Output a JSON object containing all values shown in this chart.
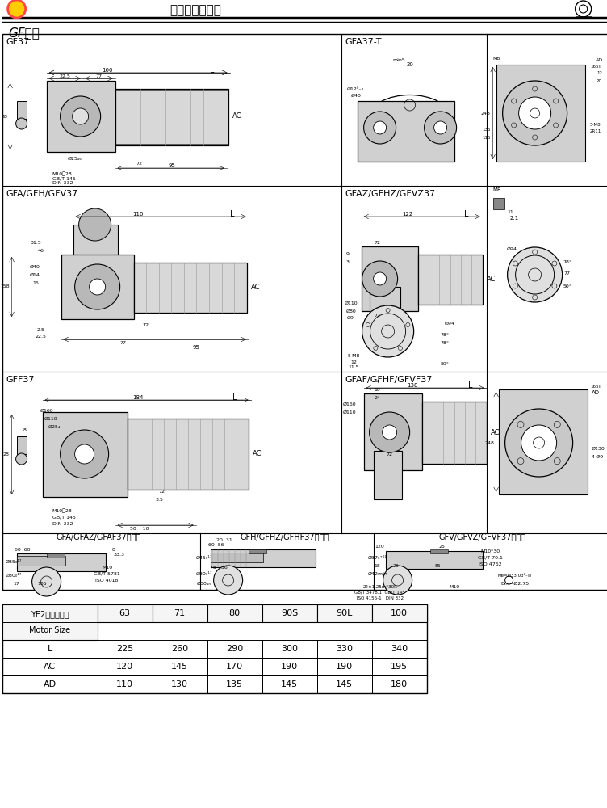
{
  "bg_color": "#ffffff",
  "table": {
    "header_row1": "YE2电机机座号",
    "header_row2": "Motor Size",
    "cols": [
      "63",
      "71",
      "80",
      "90S",
      "90L",
      "100"
    ],
    "rows": {
      "L": [
        225,
        260,
        290,
        300,
        330,
        340
      ],
      "AC": [
        120,
        145,
        170,
        190,
        190,
        195
      ],
      "AD": [
        110,
        130,
        135,
        145,
        145,
        180
      ]
    }
  }
}
